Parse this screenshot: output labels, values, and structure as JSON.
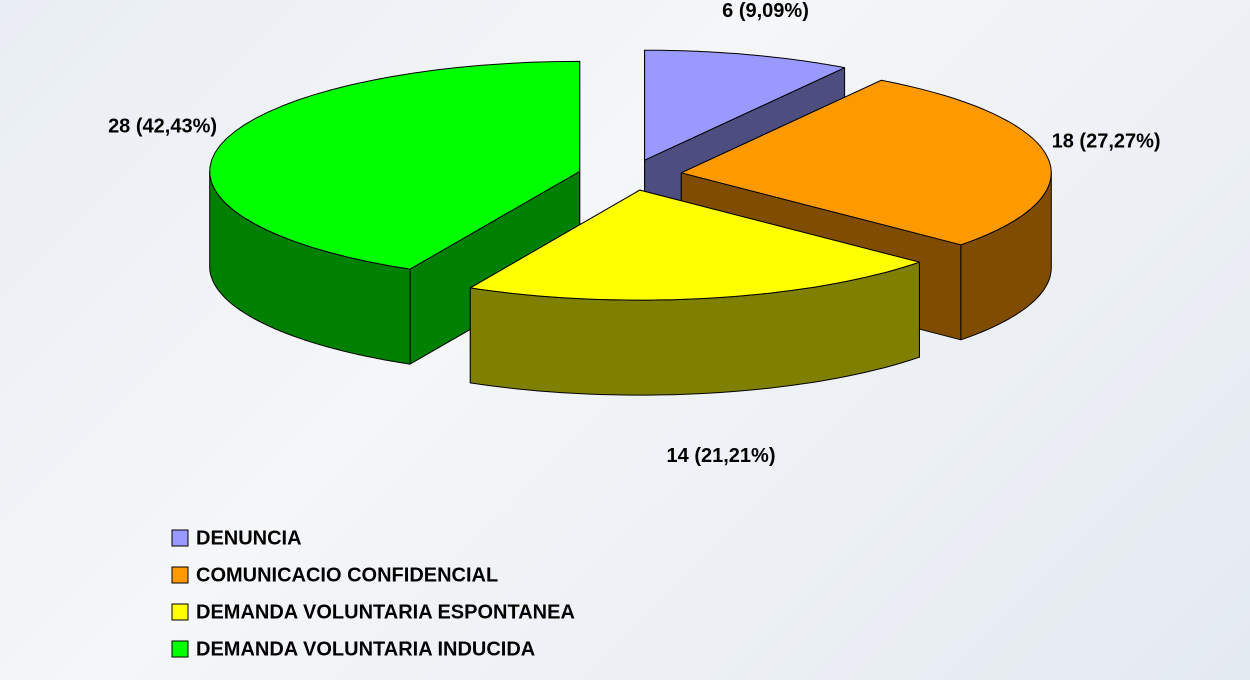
{
  "chart_data": {
    "type": "pie3d",
    "categories": [
      "DENUNCIA",
      "COMUNICACIO CONFIDENCIAL",
      "DEMANDA VOLUNTARIA ESPONTANEA",
      "DEMANDA VOLUNTARIA INDUCIDA"
    ],
    "values": [
      6,
      18,
      14,
      28
    ],
    "value_labels": [
      "6 (9,09%)",
      "18 (27,27%)",
      "14 (21,21%)",
      "28 (42,43%)"
    ],
    "colors": [
      "#9999ff",
      "#ff9900",
      "#ffff00",
      "#00ff00"
    ]
  }
}
